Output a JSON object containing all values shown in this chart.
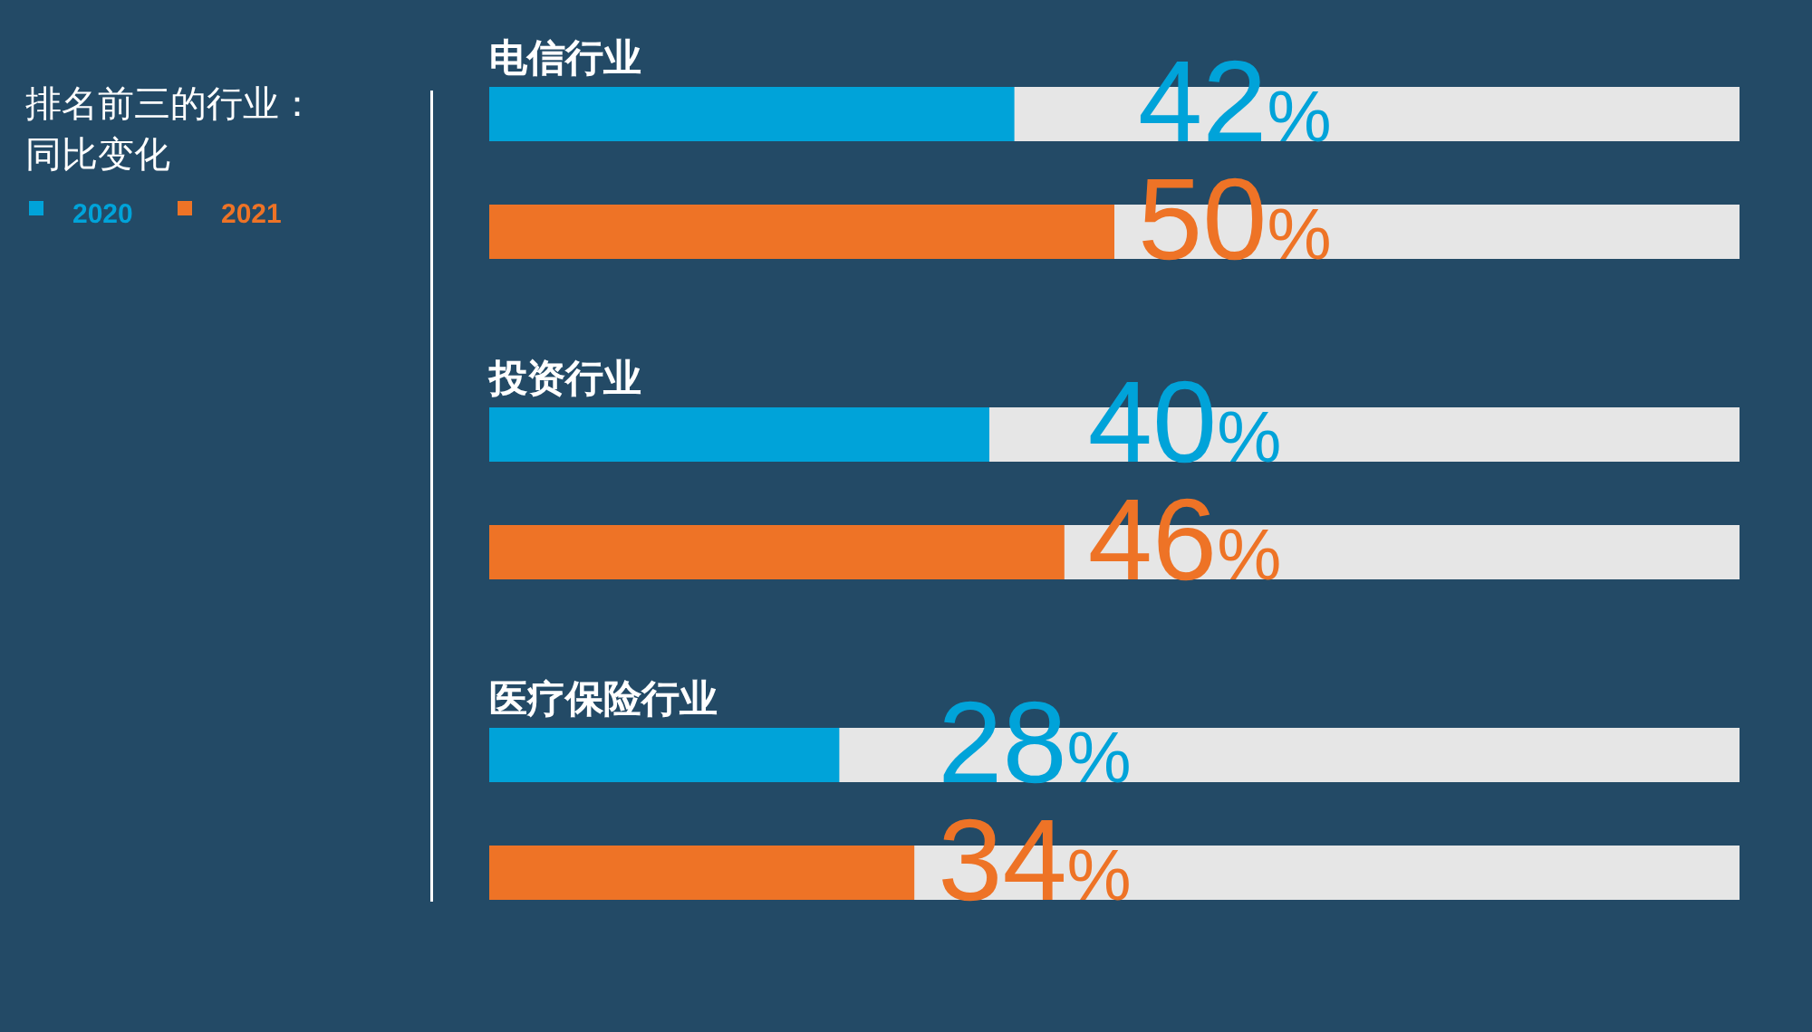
{
  "chart_data": {
    "type": "bar",
    "orientation": "horizontal",
    "title": "排名前三的行业：同比变化",
    "categories": [
      "电信行业",
      "投资行业",
      "医疗保险行业"
    ],
    "xlim": [
      0,
      100
    ],
    "tick_labels": false,
    "legend": "top left",
    "series": [
      {
        "name": "2020",
        "color": "#00a3d9",
        "values": [
          42,
          40,
          28
        ],
        "value_labels": [
          "42%",
          "40%",
          "28%"
        ]
      },
      {
        "name": "2021",
        "color": "#ee7326",
        "values": [
          50,
          46,
          34
        ],
        "value_labels": [
          "50%",
          "46%",
          "34%"
        ]
      }
    ]
  }
}
